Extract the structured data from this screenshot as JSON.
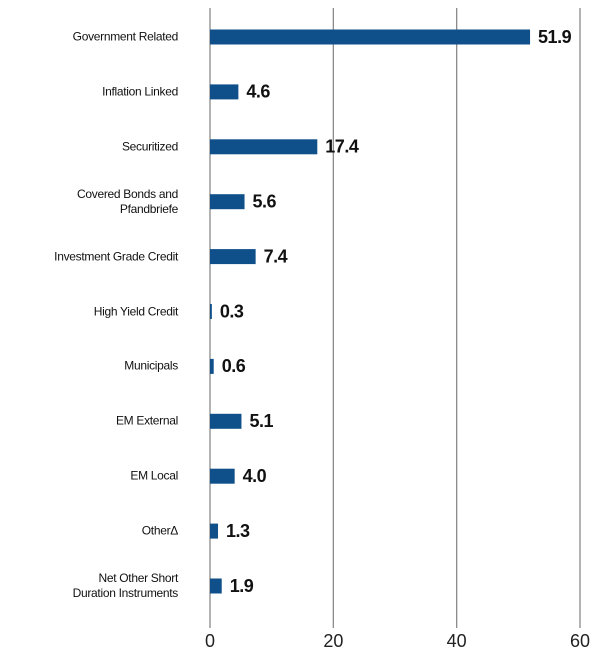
{
  "chart_data": {
    "type": "bar",
    "orientation": "horizontal",
    "categories": [
      "Government Related",
      "Inflation Linked",
      "Securitized",
      "Covered Bonds and\nPfandbriefe",
      "Investment Grade Credit",
      "High Yield Credit",
      "Municipals",
      "EM External",
      "EM Local",
      "OtherΔ",
      "Net Other Short\nDuration Instruments"
    ],
    "values": [
      51.9,
      4.6,
      17.4,
      5.6,
      7.4,
      0.3,
      0.6,
      5.1,
      4.0,
      1.3,
      1.9
    ],
    "value_labels": [
      "51.9",
      "4.6",
      "17.4",
      "5.6",
      "7.4",
      "0.3",
      "0.6",
      "5.1",
      "4.0",
      "1.3",
      "1.9"
    ],
    "color": "#0f4f8a",
    "xlim": [
      0,
      60
    ],
    "xticks": [
      0,
      20,
      40,
      60
    ],
    "grid": true
  }
}
